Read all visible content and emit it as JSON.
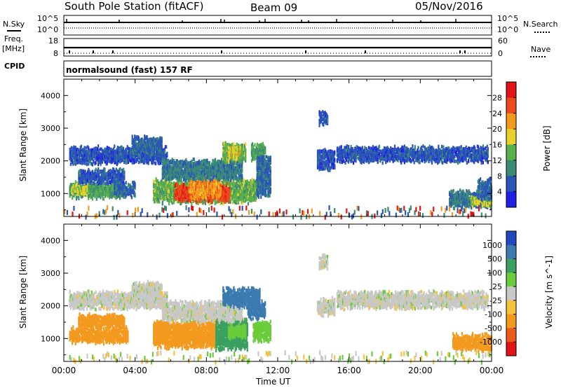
{
  "header": {
    "station": "South Pole Station (fitACF)",
    "beam": "Beam 09",
    "date": "05/Nov/2016"
  },
  "top_panels": {
    "nsky_label": "N.Sky",
    "nsearch_label": "N.Search",
    "freq_label": "Freq.",
    "freq_unit": "[MHz]",
    "nave_label": "Nave",
    "cpid_label": "CPID",
    "cpid_value": "normalsound (fast) 157 RF",
    "noise_ticks_left": [
      "10^5",
      "10^0"
    ],
    "noise_ticks_right": [
      "10^5",
      "10^0"
    ],
    "freq_ticks_left": [
      "18",
      "8"
    ],
    "nave_ticks_right": [
      "60",
      "0"
    ]
  },
  "chart_data": [
    {
      "type": "heatmap",
      "name_shown": "Power",
      "ylabel": "Slant Range [km]",
      "colorbar_label": "Power [dB]",
      "colorbar_ticks": [
        4,
        8,
        12,
        16,
        20,
        24,
        28
      ],
      "colorbar_range": [
        0,
        32
      ],
      "colors": [
        "#1f1fe6",
        "#2a55b8",
        "#3a8a76",
        "#58b04a",
        "#e8d12a",
        "#f39a1e",
        "#ec4a1a",
        "#e01414"
      ],
      "ylim": [
        300,
        4500
      ],
      "yticks": [
        1000,
        2000,
        3000,
        4000
      ],
      "xlim": [
        "00:00",
        "24:00"
      ],
      "regions": [
        {
          "t0": 0.3,
          "t1": 5.8,
          "r0": 2000,
          "r1": 2400,
          "val": 6
        },
        {
          "t0": 3.8,
          "t1": 5.5,
          "r0": 2300,
          "r1": 2700,
          "val": 7
        },
        {
          "t0": 0.3,
          "t1": 3.2,
          "r0": 950,
          "r1": 1300,
          "val": 12
        },
        {
          "t0": 0.4,
          "t1": 1.3,
          "r0": 1050,
          "r1": 1250,
          "val": 17
        },
        {
          "t0": 0.8,
          "t1": 3.4,
          "r0": 1400,
          "r1": 1700,
          "val": 6
        },
        {
          "t0": 2.8,
          "t1": 4.0,
          "r0": 1000,
          "r1": 1300,
          "val": 7
        },
        {
          "t0": 5.0,
          "t1": 10.8,
          "r0": 800,
          "r1": 1400,
          "val": 14
        },
        {
          "t0": 6.2,
          "t1": 9.3,
          "r0": 850,
          "r1": 1250,
          "val": 27
        },
        {
          "t0": 7.0,
          "t1": 8.8,
          "r0": 950,
          "r1": 1450,
          "val": 22
        },
        {
          "t0": 5.5,
          "t1": 10.0,
          "r0": 1500,
          "r1": 2000,
          "val": 9
        },
        {
          "t0": 8.9,
          "t1": 10.2,
          "r0": 2050,
          "r1": 2500,
          "val": 14
        },
        {
          "t0": 9.2,
          "t1": 9.9,
          "r0": 2100,
          "r1": 2400,
          "val": 18
        },
        {
          "t0": 10.5,
          "t1": 11.3,
          "r0": 2100,
          "r1": 2500,
          "val": 12
        },
        {
          "t0": 10.8,
          "t1": 11.6,
          "r0": 1000,
          "r1": 2100,
          "val": 7
        },
        {
          "t0": 14.3,
          "t1": 14.8,
          "r0": 3200,
          "r1": 3500,
          "val": 6
        },
        {
          "t0": 14.2,
          "t1": 15.2,
          "r0": 1800,
          "r1": 2300,
          "val": 6
        },
        {
          "t0": 15.3,
          "t1": 23.8,
          "r0": 2050,
          "r1": 2400,
          "val": 6
        },
        {
          "t0": 21.6,
          "t1": 24.0,
          "r0": 650,
          "r1": 1050,
          "val": 9
        },
        {
          "t0": 22.8,
          "t1": 24.0,
          "r0": 700,
          "r1": 900,
          "val": 17
        },
        {
          "t0": 23.2,
          "t1": 24.0,
          "r0": 900,
          "r1": 1400,
          "val": 7
        },
        {
          "t0": 0.0,
          "t1": 24.0,
          "r0": 300,
          "r1": 600,
          "val": 18,
          "scatter": true
        }
      ]
    },
    {
      "type": "heatmap",
      "name_shown": "Velocity",
      "ylabel": "Slant Range [km]",
      "colorbar_label": "Velocity [m s^-1]",
      "colorbar_ticks": [
        1000,
        500,
        100,
        25,
        -25,
        -100,
        -500,
        -1000
      ],
      "colors": [
        "#2048c0",
        "#3a7ab0",
        "#3aa060",
        "#6acc3a",
        "#c8c8c8",
        "#f5c23a",
        "#f39a1e",
        "#ec5a1a",
        "#e01414"
      ],
      "ylim": [
        300,
        4500
      ],
      "yticks": [
        1000,
        2000,
        3000,
        4000
      ],
      "xlim": [
        "00:00",
        "24:00"
      ],
      "regions": [
        {
          "t0": 0.3,
          "t1": 5.8,
          "r0": 2000,
          "r1": 2400,
          "val": 0
        },
        {
          "t0": 3.8,
          "t1": 5.5,
          "r0": 2300,
          "r1": 2700,
          "val": 0
        },
        {
          "t0": 0.3,
          "t1": 3.6,
          "r0": 950,
          "r1": 1300,
          "val": -300
        },
        {
          "t0": 0.8,
          "t1": 3.4,
          "r0": 1400,
          "r1": 1700,
          "val": -200
        },
        {
          "t0": 5.0,
          "t1": 8.6,
          "r0": 800,
          "r1": 1500,
          "val": -300
        },
        {
          "t0": 8.5,
          "t1": 10.3,
          "r0": 750,
          "r1": 1550,
          "val": 200
        },
        {
          "t0": 9.2,
          "t1": 10.2,
          "r0": 1100,
          "r1": 1400,
          "val": 60
        },
        {
          "t0": 5.5,
          "t1": 10.0,
          "r0": 1600,
          "r1": 2100,
          "val": 0
        },
        {
          "t0": 8.9,
          "t1": 11.0,
          "r0": 2050,
          "r1": 2500,
          "val": 800
        },
        {
          "t0": 10.3,
          "t1": 11.3,
          "r0": 1700,
          "r1": 2100,
          "val": 600
        },
        {
          "t0": 10.6,
          "t1": 11.6,
          "r0": 1000,
          "r1": 1500,
          "val": 60
        },
        {
          "t0": 14.3,
          "t1": 14.8,
          "r0": 3200,
          "r1": 3500,
          "val": 0
        },
        {
          "t0": 14.2,
          "t1": 15.2,
          "r0": 1800,
          "r1": 2200,
          "val": 0
        },
        {
          "t0": 15.3,
          "t1": 23.8,
          "r0": 2000,
          "r1": 2400,
          "val": 0
        },
        {
          "t0": 21.8,
          "t1": 24.0,
          "r0": 700,
          "r1": 1100,
          "val": -300
        },
        {
          "t0": 0.0,
          "t1": 24.0,
          "r0": 300,
          "r1": 600,
          "val": -30,
          "scatter": true
        }
      ]
    }
  ],
  "x_axis": {
    "label": "Time UT",
    "ticks": [
      "00:00",
      "04:00",
      "08:00",
      "12:00",
      "16:00",
      "20:00",
      "00:00"
    ]
  }
}
